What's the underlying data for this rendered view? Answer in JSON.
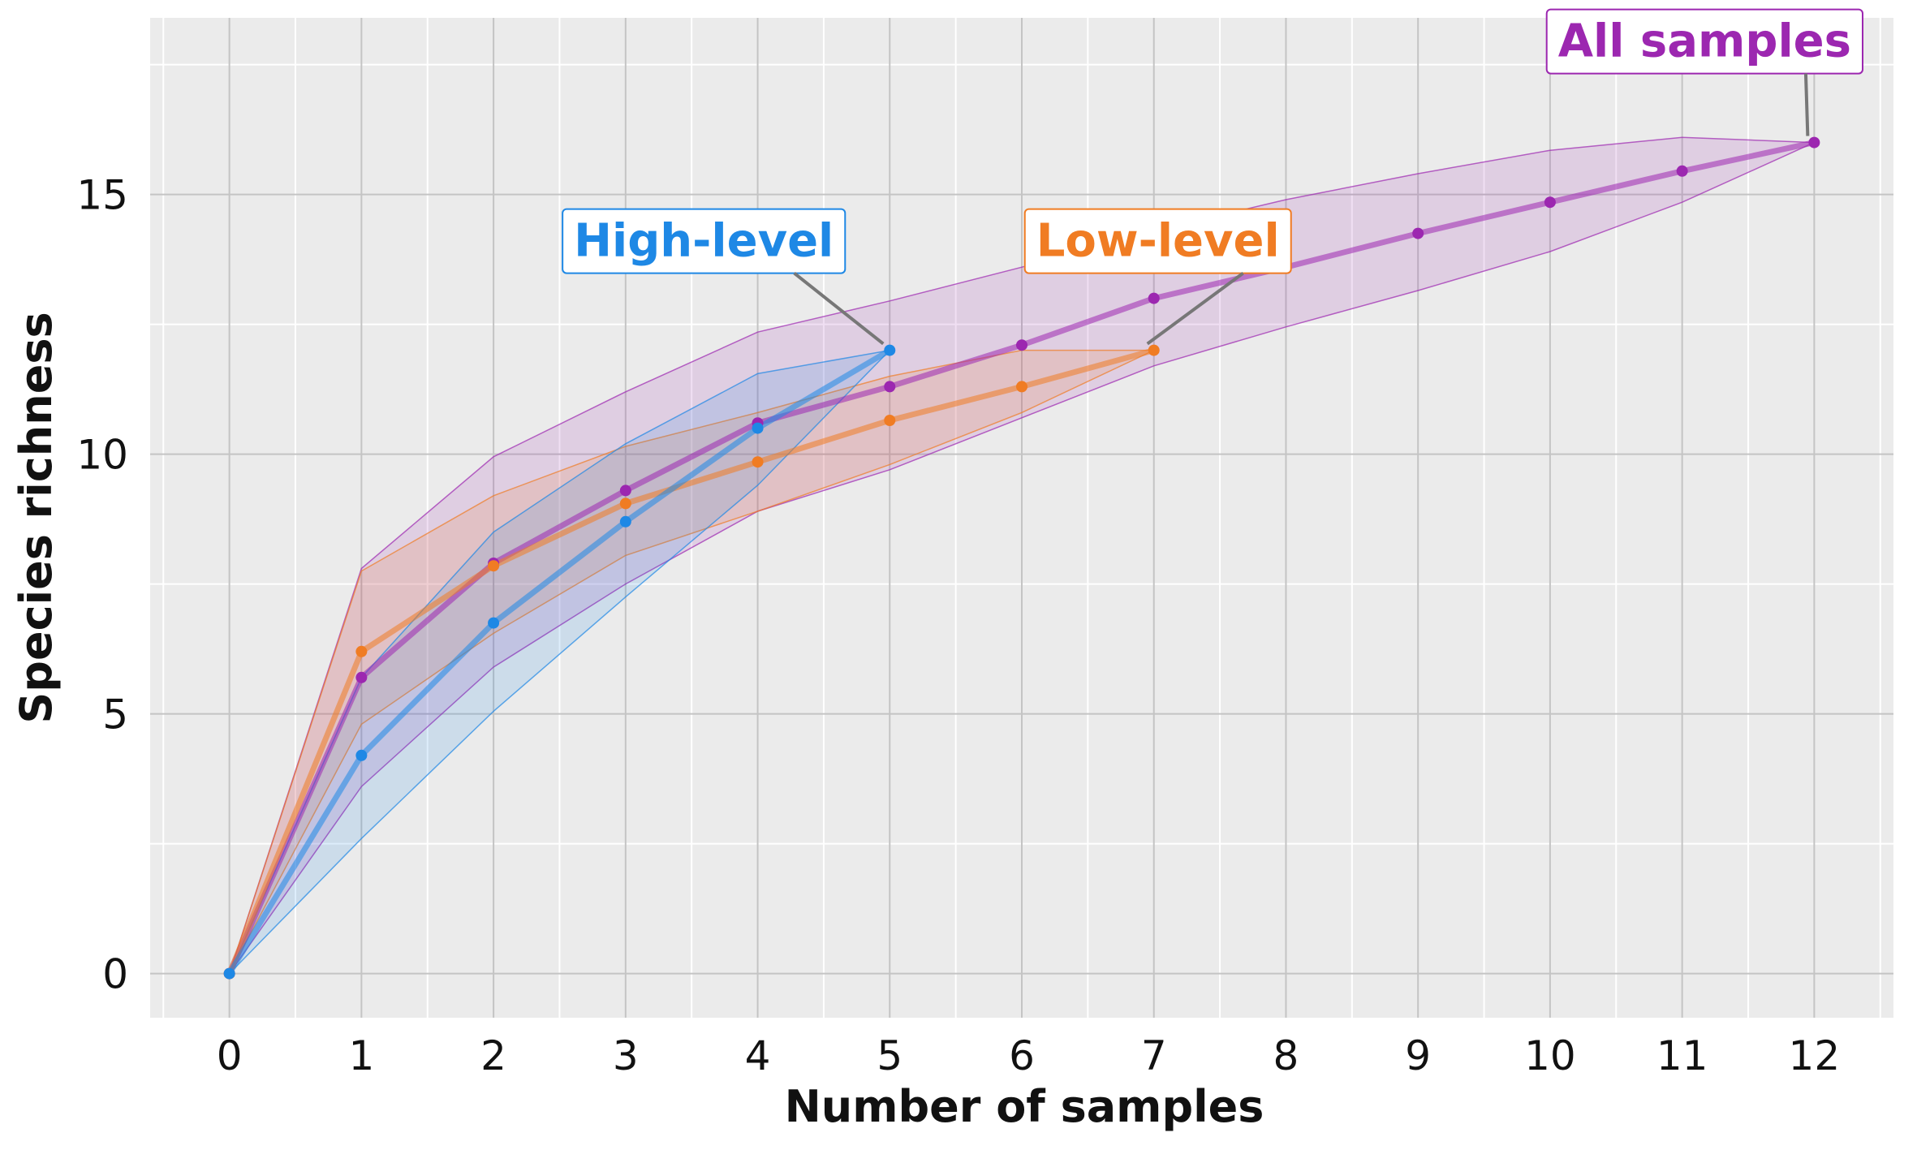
{
  "chart_data": {
    "type": "line",
    "title": "",
    "xlabel": "Number of samples",
    "ylabel": "Species richness",
    "xlim": [
      -0.6,
      12.6
    ],
    "ylim": [
      -0.85,
      18.4
    ],
    "xticks": [
      0,
      1,
      2,
      3,
      4,
      5,
      6,
      7,
      8,
      9,
      10,
      11,
      12
    ],
    "yticks": [
      0,
      5,
      10,
      15
    ],
    "grid": true,
    "legend": "none",
    "series": [
      {
        "name": "All samples",
        "color": "#9c27b0",
        "x": [
          0,
          1,
          2,
          3,
          4,
          5,
          6,
          7,
          8,
          9,
          10,
          11,
          12
        ],
        "y": [
          0,
          5.7,
          7.9,
          9.3,
          10.6,
          11.3,
          12.1,
          13.0,
          13.6,
          14.25,
          14.85,
          15.45,
          16.0
        ],
        "lower": [
          0,
          3.6,
          5.9,
          7.5,
          8.9,
          9.7,
          10.7,
          11.7,
          12.45,
          13.15,
          13.9,
          14.85,
          16.0
        ],
        "upper": [
          0,
          7.8,
          9.95,
          11.2,
          12.35,
          12.95,
          13.6,
          14.3,
          14.9,
          15.4,
          15.85,
          16.1,
          16.0
        ]
      },
      {
        "name": "Low-level",
        "color": "#f07c23",
        "x": [
          0,
          1,
          2,
          3,
          4,
          5,
          6,
          7
        ],
        "y": [
          0,
          6.2,
          7.85,
          9.05,
          9.85,
          10.65,
          11.3,
          12.0
        ],
        "lower": [
          0,
          4.8,
          6.55,
          8.05,
          8.9,
          9.8,
          10.8,
          12.0
        ],
        "upper": [
          0,
          7.75,
          9.2,
          10.15,
          10.8,
          11.5,
          12.0,
          12.0
        ]
      },
      {
        "name": "High-level",
        "color": "#1e88e5",
        "x": [
          0,
          1,
          2,
          3,
          4,
          5
        ],
        "y": [
          0,
          4.2,
          6.75,
          8.7,
          10.5,
          12.0
        ],
        "lower": [
          0,
          2.6,
          5.05,
          7.25,
          9.4,
          12.0
        ],
        "upper": [
          0,
          5.7,
          8.5,
          10.2,
          11.55,
          12.0
        ]
      }
    ],
    "annotations": [
      {
        "text": "High-level",
        "color": "#1e88e5",
        "point": [
          5,
          12.0
        ]
      },
      {
        "text": "Low-level",
        "color": "#f07c23",
        "point": [
          7,
          12.0
        ]
      },
      {
        "text": "All samples",
        "color": "#9c27b0",
        "point": [
          12,
          16.0
        ]
      }
    ]
  }
}
